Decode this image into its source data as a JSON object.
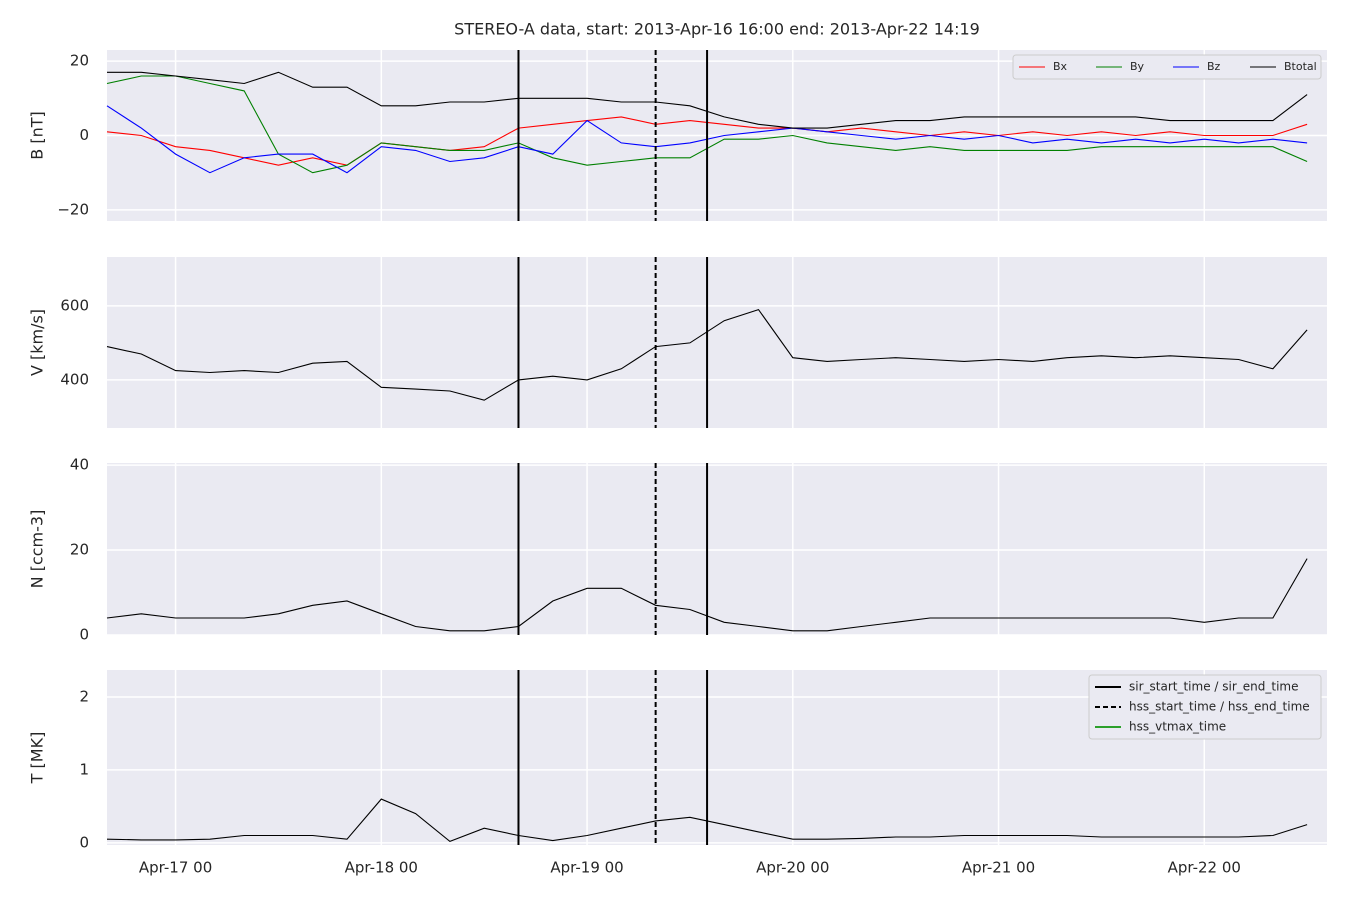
{
  "chart_data": {
    "type": "line",
    "title": "STEREO-A data, start: 2013-Apr-16 16:00  end: 2013-Apr-22 14:19",
    "x": [
      "2013-04-16T16:00",
      "2013-04-16T20:00",
      "2013-04-17T00:00",
      "2013-04-17T04:00",
      "2013-04-17T08:00",
      "2013-04-17T12:00",
      "2013-04-17T16:00",
      "2013-04-17T20:00",
      "2013-04-18T00:00",
      "2013-04-18T04:00",
      "2013-04-18T08:00",
      "2013-04-18T12:00",
      "2013-04-18T16:00",
      "2013-04-18T20:00",
      "2013-04-19T00:00",
      "2013-04-19T04:00",
      "2013-04-19T08:00",
      "2013-04-19T12:00",
      "2013-04-19T16:00",
      "2013-04-19T20:00",
      "2013-04-20T00:00",
      "2013-04-20T04:00",
      "2013-04-20T08:00",
      "2013-04-20T12:00",
      "2013-04-20T16:00",
      "2013-04-20T20:00",
      "2013-04-21T00:00",
      "2013-04-21T04:00",
      "2013-04-21T08:00",
      "2013-04-21T12:00",
      "2013-04-21T16:00",
      "2013-04-21T20:00",
      "2013-04-22T00:00",
      "2013-04-22T04:00",
      "2013-04-22T08:00",
      "2013-04-22T12:00"
    ],
    "xlim": [
      "2013-04-16T16:00",
      "2013-04-22T14:19"
    ],
    "xticks": [
      {
        "value": "2013-04-17T00:00",
        "label": "Apr-17 00"
      },
      {
        "value": "2013-04-18T00:00",
        "label": "Apr-18 00"
      },
      {
        "value": "2013-04-19T00:00",
        "label": "Apr-19 00"
      },
      {
        "value": "2013-04-20T00:00",
        "label": "Apr-20 00"
      },
      {
        "value": "2013-04-21T00:00",
        "label": "Apr-21 00"
      },
      {
        "value": "2013-04-22T00:00",
        "label": "Apr-22 00"
      }
    ],
    "grid": true,
    "markers": [
      {
        "name": "sir_start_time / sir_end_time",
        "color": "#000000",
        "dashed": false,
        "x": [
          "2013-04-18T16:00",
          "2013-04-19T14:00"
        ]
      },
      {
        "name": "hss_start_time / hss_end_time",
        "color": "#000000",
        "dashed": true,
        "x": [
          "2013-04-19T08:00"
        ]
      },
      {
        "name": "hss_vtmax_time",
        "color": "#2ca02c",
        "dashed": false,
        "x": []
      }
    ],
    "panels": [
      {
        "ylabel": "B [nT]",
        "ylim": [
          -23,
          23
        ],
        "yticks": [
          {
            "value": -20,
            "label": "−20"
          },
          0,
          20
        ],
        "legend": "upper right",
        "legend_columns": 4,
        "series": [
          {
            "name": "Bx",
            "color": "#ff0000",
            "values": [
              1,
              0,
              -3,
              -4,
              -6,
              -8,
              -6,
              -8,
              -2,
              -3,
              -4,
              -3,
              2,
              3,
              4,
              5,
              3,
              4,
              3,
              2,
              2,
              1,
              2,
              1,
              0,
              1,
              0,
              1,
              0,
              1,
              0,
              1,
              0,
              0,
              0,
              3
            ]
          },
          {
            "name": "By",
            "color": "#008000",
            "values": [
              14,
              16,
              16,
              14,
              12,
              -5,
              -10,
              -8,
              -2,
              -3,
              -4,
              -4,
              -2,
              -6,
              -8,
              -7,
              -6,
              -6,
              -1,
              -1,
              0,
              -2,
              -3,
              -4,
              -3,
              -4,
              -4,
              -4,
              -4,
              -3,
              -3,
              -3,
              -3,
              -3,
              -3,
              -7
            ]
          },
          {
            "name": "Bz",
            "color": "#0000ff",
            "values": [
              8,
              2,
              -5,
              -10,
              -6,
              -5,
              -5,
              -10,
              -3,
              -4,
              -7,
              -6,
              -3,
              -5,
              4,
              -2,
              -3,
              -2,
              0,
              1,
              2,
              1,
              0,
              -1,
              0,
              -1,
              0,
              -2,
              -1,
              -2,
              -1,
              -2,
              -1,
              -2,
              -1,
              -2
            ]
          },
          {
            "name": "Btotal",
            "color": "#000000",
            "values": [
              17,
              17,
              16,
              15,
              14,
              17,
              13,
              13,
              8,
              8,
              9,
              9,
              10,
              10,
              10,
              9,
              9,
              8,
              5,
              3,
              2,
              2,
              3,
              4,
              4,
              5,
              5,
              5,
              5,
              5,
              5,
              4,
              4,
              4,
              4,
              11
            ]
          }
        ]
      },
      {
        "ylabel": "V [km/s]",
        "ylim": [
          270,
          732
        ],
        "yticks": [
          400,
          600
        ],
        "series": [
          {
            "color": "#000000",
            "values": [
              490,
              470,
              425,
              420,
              425,
              420,
              445,
              450,
              380,
              375,
              370,
              345,
              400,
              410,
              400,
              430,
              490,
              500,
              560,
              590,
              460,
              450,
              455,
              460,
              455,
              450,
              455,
              450,
              460,
              465,
              460,
              465,
              460,
              455,
              430,
              535
            ]
          }
        ]
      },
      {
        "ylabel": "N [ccm-3]",
        "ylim": [
          0,
          40.5
        ],
        "yticks": [
          0,
          20,
          40
        ],
        "series": [
          {
            "color": "#000000",
            "values": [
              4,
              5,
              4,
              4,
              4,
              5,
              7,
              8,
              5,
              2,
              1,
              1,
              2,
              8,
              11,
              11,
              7,
              6,
              3,
              2,
              1,
              1,
              2,
              3,
              4,
              4,
              4,
              4,
              4,
              4,
              4,
              4,
              3,
              4,
              4,
              18
            ]
          }
        ]
      },
      {
        "ylabel": "T [MK]",
        "ylim": [
          -0.03,
          2.37
        ],
        "yticks": [
          0,
          1,
          2
        ],
        "markers_legend": "upper right",
        "series": [
          {
            "color": "#000000",
            "values": [
              0.05,
              0.04,
              0.04,
              0.05,
              0.1,
              0.1,
              0.1,
              0.05,
              0.6,
              0.4,
              0.02,
              0.2,
              0.1,
              0.03,
              0.1,
              0.2,
              0.3,
              0.35,
              0.25,
              0.15,
              0.05,
              0.05,
              0.06,
              0.08,
              0.08,
              0.1,
              0.1,
              0.1,
              0.1,
              0.08,
              0.08,
              0.08,
              0.08,
              0.08,
              0.1,
              0.25
            ]
          }
        ]
      }
    ]
  }
}
